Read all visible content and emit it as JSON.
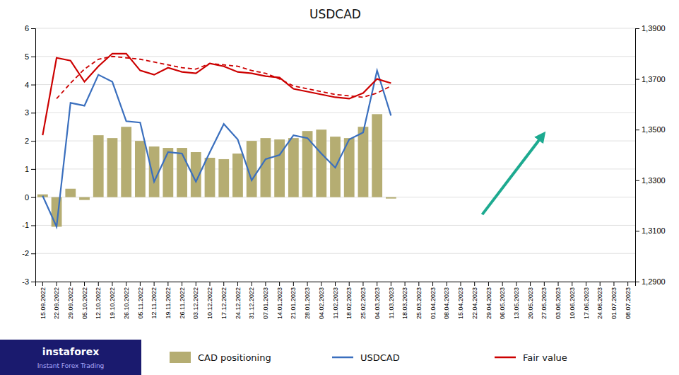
{
  "chart_data": {
    "type": "bar",
    "title": "USDCAD",
    "categories": [
      "15.09.2022",
      "22.09.2022",
      "29.09.2022",
      "05.10.2022",
      "12.10.2022",
      "19.10.2022",
      "26.10.2022",
      "05.11.2022",
      "12.11.2022",
      "19.11.2022",
      "26.11.2022",
      "03.12.2022",
      "10.12.2022",
      "17.12.2022",
      "24.12.2022",
      "31.12.2022",
      "07.01.2023",
      "14.01.2023",
      "21.01.2023",
      "28.01.2023",
      "04.02.2023",
      "11.02.2023",
      "18.02.2023",
      "25.02.2023",
      "04.03.2023",
      "11.03.2023",
      "18.03.2023",
      "25.03.2023",
      "01.04.2023",
      "08.04.2023",
      "15.04.2023",
      "22.04.2023",
      "29.04.2023",
      "06.05.2023",
      "13.05.2023",
      "20.05.2023",
      "27.05.2023",
      "03.06.2023",
      "10.06.2023",
      "17.06.2023",
      "24.06.2023",
      "01.07.2023",
      "08.07.2023"
    ],
    "series": [
      {
        "name": "CAD positioning",
        "type": "bar",
        "color": "#b5ad72",
        "values": [
          0.1,
          -1.05,
          0.3,
          -0.1,
          2.2,
          2.1,
          2.5,
          2.0,
          1.8,
          1.75,
          1.75,
          1.6,
          1.4,
          1.35,
          1.55,
          2.0,
          2.1,
          2.05,
          2.1,
          2.35,
          2.4,
          2.15,
          2.1,
          2.5,
          2.95,
          -0.05,
          null,
          null,
          null,
          null,
          null,
          null,
          null,
          null,
          null,
          null,
          null,
          null,
          null,
          null,
          null,
          null,
          null
        ]
      },
      {
        "name": "USDCAD",
        "type": "line",
        "color": "#3a6fbe",
        "line_style": "solid",
        "values": [
          0.05,
          -1.05,
          3.35,
          3.25,
          4.35,
          4.1,
          2.7,
          2.65,
          0.55,
          1.6,
          1.55,
          0.55,
          1.6,
          2.6,
          2.05,
          0.6,
          1.35,
          1.5,
          2.2,
          2.1,
          1.55,
          1.05,
          2.05,
          2.3,
          4.5,
          2.9,
          null,
          null,
          null,
          null,
          null,
          null,
          null,
          null,
          null,
          null,
          null,
          null,
          null,
          null,
          null,
          null,
          null
        ]
      },
      {
        "name": "Fair value",
        "type": "line",
        "color": "#cc0000",
        "line_style": "solid",
        "values": [
          2.2,
          4.95,
          4.85,
          4.1,
          4.65,
          5.1,
          5.1,
          4.5,
          4.35,
          4.6,
          4.45,
          4.4,
          4.75,
          4.65,
          4.45,
          4.4,
          4.3,
          4.25,
          3.85,
          3.75,
          3.65,
          3.55,
          3.5,
          3.7,
          4.2,
          4.05,
          null,
          null,
          null,
          null,
          null,
          null,
          null,
          null,
          null,
          null,
          null,
          null,
          null,
          null,
          null,
          null,
          null
        ]
      },
      {
        "name": "Fair value",
        "type": "line",
        "color": "#cc0000",
        "line_style": "dashed",
        "values": [
          null,
          3.5,
          4.05,
          4.55,
          4.9,
          5.0,
          4.95,
          4.9,
          4.8,
          4.7,
          4.6,
          4.55,
          4.75,
          4.7,
          4.65,
          4.5,
          4.4,
          4.2,
          3.95,
          3.85,
          3.75,
          3.65,
          3.6,
          3.55,
          3.7,
          3.95,
          null,
          null,
          null,
          null,
          null,
          null,
          null,
          null,
          null,
          null,
          null,
          null,
          null,
          null,
          null,
          null,
          null
        ]
      }
    ],
    "ylim": [
      -3,
      6
    ],
    "yticks": [
      -3,
      -2,
      -1,
      0,
      1,
      2,
      3,
      4,
      5,
      6
    ],
    "y2lim": [
      1.29,
      1.39
    ],
    "y2ticks": [
      {
        "value": 1.29,
        "label": "1,2900"
      },
      {
        "value": 1.31,
        "label": "1,3100"
      },
      {
        "value": 1.33,
        "label": "1,3300"
      },
      {
        "value": 1.35,
        "label": "1,3500"
      },
      {
        "value": 1.37,
        "label": "1,3700"
      },
      {
        "value": 1.39,
        "label": "1,3900"
      }
    ],
    "grid": true,
    "legend": "bottom",
    "annotations": [
      "instaforex",
      "Instant Forex Trading"
    ]
  }
}
